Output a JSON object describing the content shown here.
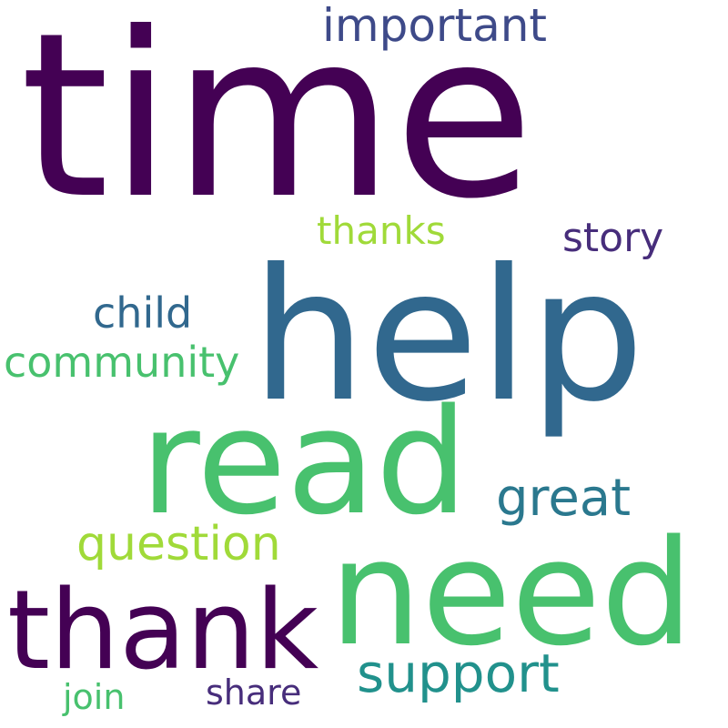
{
  "word_cloud": {
    "words": [
      {
        "text": "time",
        "color": "#440154"
      },
      {
        "text": "help",
        "color": "#31688e"
      },
      {
        "text": "read",
        "color": "#48c16e"
      },
      {
        "text": "need",
        "color": "#48c16e"
      },
      {
        "text": "thank",
        "color": "#440154"
      },
      {
        "text": "important",
        "color": "#3e4a89"
      },
      {
        "text": "story",
        "color": "#472d7b"
      },
      {
        "text": "thanks",
        "color": "#a0da39"
      },
      {
        "text": "child",
        "color": "#31688e"
      },
      {
        "text": "community",
        "color": "#48c16e"
      },
      {
        "text": "great",
        "color": "#2a788e"
      },
      {
        "text": "question",
        "color": "#a0da39"
      },
      {
        "text": "support",
        "color": "#21918c"
      },
      {
        "text": "share",
        "color": "#472d7b"
      },
      {
        "text": "join",
        "color": "#48c16e"
      }
    ]
  }
}
